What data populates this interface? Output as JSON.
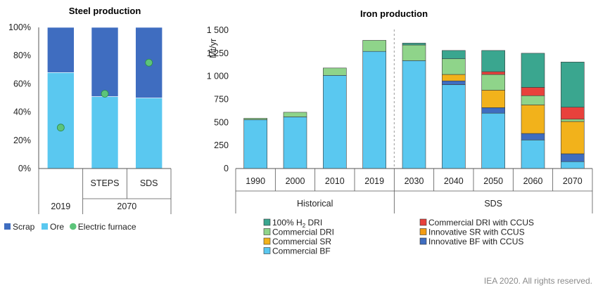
{
  "chart_data": [
    {
      "type": "bar",
      "stacked": true,
      "title": "Steel production",
      "categories": [
        "2019",
        "STEPS",
        "SDS"
      ],
      "category_groups": [
        {
          "label": "2019",
          "categories": [
            "2019"
          ]
        },
        {
          "label": "2070",
          "categories": [
            "STEPS",
            "SDS"
          ]
        }
      ],
      "ylim": [
        0,
        100
      ],
      "yticks": [
        "0%",
        "20%",
        "40%",
        "60%",
        "80%",
        "100%"
      ],
      "series": [
        {
          "name": "Ore",
          "values": [
            68,
            51,
            50
          ],
          "color": "#5ac8f0"
        },
        {
          "name": "Scrap",
          "values": [
            32,
            49,
            50
          ],
          "color": "#3f6dc0"
        }
      ],
      "markers": {
        "name": "Electric furnace",
        "values": [
          29,
          53,
          75
        ],
        "color": "#5cc47a"
      },
      "legend": [
        "Scrap",
        "Ore",
        "Electric furnace"
      ],
      "legend_position": "bottom"
    },
    {
      "type": "bar",
      "stacked": true,
      "title": "Iron production",
      "ylabel": "Mt/yr",
      "ylim": [
        0,
        1500
      ],
      "yticks": [
        "0",
        "250",
        "500",
        "750",
        "1 000",
        "1 250",
        "1 500"
      ],
      "categories": [
        "1990",
        "2000",
        "2010",
        "2019",
        "2030",
        "2040",
        "2050",
        "2060",
        "2070"
      ],
      "category_groups": [
        {
          "label": "Historical",
          "categories": [
            "1990",
            "2000",
            "2010",
            "2019"
          ]
        },
        {
          "label": "SDS",
          "categories": [
            "2030",
            "2040",
            "2050",
            "2060",
            "2070"
          ]
        }
      ],
      "series": [
        {
          "name": "Commercial BF",
          "color": "#5ac8f0",
          "values": [
            530,
            560,
            1010,
            1270,
            1170,
            910,
            600,
            310,
            75
          ]
        },
        {
          "name": "Innovative BF with CCUS",
          "color": "#3f6dc0",
          "values": [
            0,
            0,
            0,
            0,
            0,
            40,
            60,
            70,
            85
          ]
        },
        {
          "name": "Commercial SR",
          "color": "#f2b21b",
          "values": [
            0,
            0,
            0,
            0,
            0,
            70,
            190,
            310,
            350
          ]
        },
        {
          "name": "Innovative SR with CCUS",
          "color": "#f39c12",
          "values": [
            0,
            0,
            0,
            0,
            0,
            0,
            0,
            0,
            0
          ]
        },
        {
          "name": "Commercial DRI",
          "color": "#8fd48a",
          "values": [
            15,
            50,
            80,
            120,
            170,
            170,
            170,
            100,
            25
          ]
        },
        {
          "name": "Commercial DRI with CCUS",
          "color": "#e8413c",
          "values": [
            0,
            0,
            0,
            0,
            0,
            0,
            30,
            90,
            130
          ]
        },
        {
          "name": "100% H2 DRI",
          "color": "#3aa68f",
          "values": [
            0,
            0,
            0,
            0,
            20,
            90,
            230,
            370,
            490
          ]
        }
      ],
      "legend": [
        {
          "label": "100% H",
          "sub": "2",
          "tail": " DRI",
          "color": "#3aa68f"
        },
        {
          "label": "Commercial DRI",
          "color": "#8fd48a"
        },
        {
          "label": "Commercial SR",
          "color": "#f2b21b"
        },
        {
          "label": "Commercial BF",
          "color": "#5ac8f0"
        },
        {
          "label": "Commercial DRI with CCUS",
          "color": "#e8413c"
        },
        {
          "label": "Innovative SR with CCUS",
          "color": "#f39c12"
        },
        {
          "label": "Innovative BF with CCUS",
          "color": "#3f6dc0"
        }
      ],
      "legend_position": "bottom"
    }
  ],
  "source_note": "IEA 2020. All rights reserved."
}
